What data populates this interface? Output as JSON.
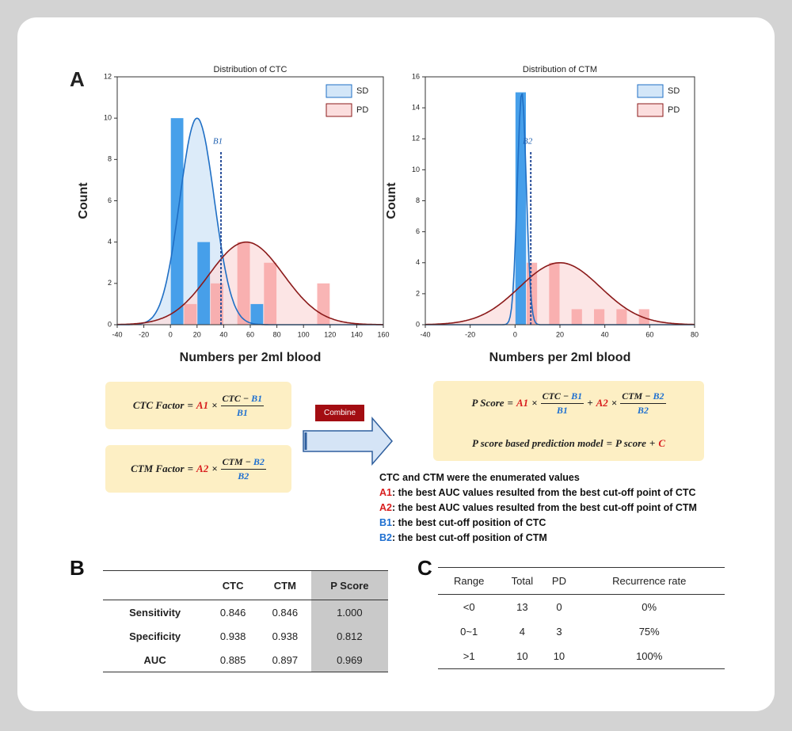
{
  "panel_a": {
    "label": "A",
    "charts": [
      {
        "type": "histogram",
        "title": "Distribution of CTC",
        "x_label": "Numbers per 2ml blood",
        "y_label": "Count",
        "xlim": [
          -40,
          160
        ],
        "xticks": [
          -40,
          -20,
          0,
          20,
          40,
          60,
          80,
          100,
          120,
          140,
          160
        ],
        "ylim": [
          0,
          12
        ],
        "yticks": [
          0,
          2,
          4,
          6,
          8,
          10,
          12
        ],
        "bins": [
          0,
          10,
          20,
          30,
          40,
          50,
          60,
          70,
          80,
          90,
          100,
          110,
          120
        ],
        "legend": "top-right",
        "series": [
          {
            "name": "SD",
            "color": "#3d9be9",
            "curve_color": "#1f6fc5",
            "fill": "#d3e6f8",
            "values": [
              10,
              0,
              4,
              0,
              0,
              0,
              1,
              0,
              0,
              0,
              0,
              0
            ],
            "fit": {
              "mean": 20,
              "sd": 13,
              "peak": 10
            }
          },
          {
            "name": "PD",
            "color": "#f7a3a3",
            "curve_color": "#8b1a1a",
            "fill": "#fbdede",
            "values": [
              0,
              1,
              0,
              2,
              0,
              4,
              0,
              3,
              0,
              0,
              0,
              2
            ],
            "fit": {
              "mean": 57,
              "sd": 28,
              "peak": 4
            }
          }
        ],
        "cutoff": {
          "label": "B1",
          "value": 38
        }
      },
      {
        "type": "histogram",
        "title": "Distribution of CTM",
        "x_label": "Numbers per 2ml blood",
        "y_label": "Count",
        "xlim": [
          -40,
          80
        ],
        "xticks": [
          -40,
          -20,
          0,
          20,
          40,
          60,
          80
        ],
        "ylim": [
          0,
          16
        ],
        "yticks": [
          0,
          2,
          4,
          6,
          8,
          10,
          12,
          14,
          16
        ],
        "bins": [
          0,
          5,
          10,
          15,
          20,
          25,
          30,
          35,
          40,
          45,
          50,
          55,
          60
        ],
        "legend": "top-right",
        "series": [
          {
            "name": "SD",
            "color": "#3d9be9",
            "curve_color": "#1f6fc5",
            "fill": "#d3e6f8",
            "values": [
              15,
              0,
              0,
              0,
              0,
              0,
              0,
              0,
              0,
              0,
              0,
              0
            ],
            "fit": {
              "mean": 3,
              "sd": 2,
              "peak": 15
            }
          },
          {
            "name": "PD",
            "color": "#f7a3a3",
            "curve_color": "#8b1a1a",
            "fill": "#fbdede",
            "values": [
              0,
              4,
              0,
              4,
              0,
              1,
              0,
              1,
              0,
              1,
              0,
              1
            ],
            "fit": {
              "mean": 20,
              "sd": 18,
              "peak": 4
            }
          }
        ],
        "cutoff": {
          "label": "B2",
          "value": 7
        }
      }
    ],
    "formulas": {
      "ctc_factor": {
        "lhs": "CTC Factor",
        "eq": "=",
        "coef": "A1",
        "times": "×",
        "num": "CTC −",
        "num_key": "B1",
        "den": "B1"
      },
      "ctm_factor": {
        "lhs": "CTM Factor",
        "eq": "=",
        "coef": "A2",
        "times": "×",
        "num": "CTM −",
        "num_key": "B2",
        "den": "B2"
      },
      "combine": "Combine",
      "p_score": {
        "lhs": "P Score",
        "eq": "=",
        "coef1": "A1",
        "times1": "×",
        "num1": "CTC −",
        "num1_key": "B1",
        "den1": "B1",
        "plus": "+",
        "coef2": "A2",
        "times2": "×",
        "num2": "CTM −",
        "num2_key": "B2",
        "den2": "B2"
      },
      "model": {
        "lhs": "P score based prediction model",
        "eq": "=",
        "rhs": "P score",
        "plus": "+",
        "const": "C"
      }
    },
    "notes": {
      "intro": "CTC and CTM were the enumerated values",
      "items": [
        {
          "key": "A1",
          "text": ": the best AUC values resulted from the best cut-off point of CTC"
        },
        {
          "key": "A2",
          "text": ": the best AUC values resulted from the best cut-off point of CTM"
        },
        {
          "key": "B1",
          "text": ": the best cut-off position of CTC"
        },
        {
          "key": "B2",
          "text": ": the best cut-off position of CTM"
        }
      ]
    }
  },
  "panel_b": {
    "label": "B",
    "table": {
      "header": [
        "",
        "CTC",
        "CTM",
        "P Score"
      ],
      "rows": [
        [
          "Sensitivity",
          "0.846",
          "0.846",
          "1.000"
        ],
        [
          "Specificity",
          "0.938",
          "0.938",
          "0.812"
        ],
        [
          "AUC",
          "0.885",
          "0.897",
          "0.969"
        ]
      ]
    }
  },
  "panel_c": {
    "label": "C",
    "table": {
      "header": [
        "Range",
        "Total",
        "PD",
        "Recurrence rate"
      ],
      "rows": [
        [
          "<0",
          "13",
          "0",
          "0%"
        ],
        [
          "0~1",
          "4",
          "3",
          "75%"
        ],
        [
          ">1",
          "10",
          "10",
          "100%"
        ]
      ]
    }
  }
}
